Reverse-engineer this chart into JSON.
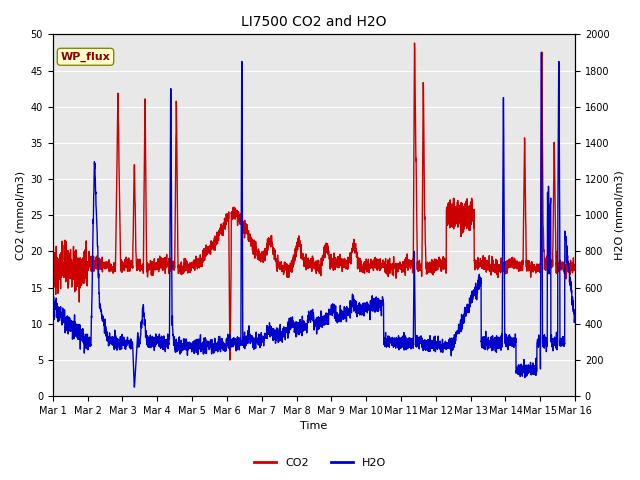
{
  "title": "LI7500 CO2 and H2O",
  "xlabel": "Time",
  "ylabel_left": "CO2 (mmol/m3)",
  "ylabel_right": "H2O (mmol/m3)",
  "ylim_left": [
    0,
    50
  ],
  "ylim_right": [
    0,
    2000
  ],
  "xlim": [
    0,
    15
  ],
  "xtick_labels": [
    "Mar 1",
    "Mar 2",
    "Mar 3",
    "Mar 4",
    "Mar 5",
    "Mar 6",
    "Mar 7",
    "Mar 8",
    "Mar 9",
    "Mar 10",
    "Mar 11",
    "Mar 12",
    "Mar 13",
    "Mar 14",
    "Mar 15",
    "Mar 16"
  ],
  "xtick_positions": [
    0,
    1,
    2,
    3,
    4,
    5,
    6,
    7,
    8,
    9,
    10,
    11,
    12,
    13,
    14,
    15
  ],
  "co2_color": "#cc0000",
  "h2o_color": "#0000cc",
  "background_color": "#e8e8e8",
  "fig_background": "#ffffff",
  "wp_flux_text": "WP_flux",
  "wp_flux_bg": "#ffffcc",
  "wp_flux_edge": "#8b0000",
  "legend_co2": "CO2",
  "legend_h2o": "H2O",
  "title_fontsize": 10,
  "axis_label_fontsize": 8,
  "tick_fontsize": 7,
  "line_width": 1.0,
  "grid_color": "#ffffff",
  "yticks_left": [
    0,
    5,
    10,
    15,
    20,
    25,
    30,
    35,
    40,
    45,
    50
  ],
  "yticks_right": [
    0,
    200,
    400,
    600,
    800,
    1000,
    1200,
    1400,
    1600,
    1800,
    2000
  ]
}
